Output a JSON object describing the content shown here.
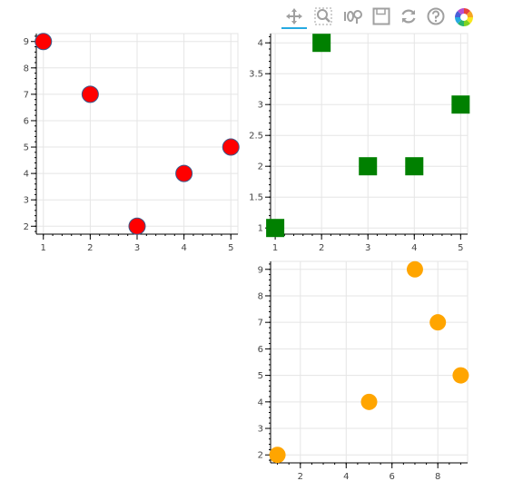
{
  "toolbar": {
    "tools": [
      {
        "name": "pan-tool",
        "icon": "pan-icon",
        "active": true
      },
      {
        "name": "box-zoom-tool",
        "icon": "box-zoom-icon",
        "active": false
      },
      {
        "name": "wheel-zoom-tool",
        "icon": "wheel-zoom-icon",
        "active": false
      },
      {
        "name": "save-tool",
        "icon": "save-icon",
        "active": false
      },
      {
        "name": "reset-tool",
        "icon": "reset-icon",
        "active": false
      },
      {
        "name": "help-tool",
        "icon": "help-icon",
        "active": false
      },
      {
        "name": "bokeh-logo",
        "icon": "bokeh-logo-icon",
        "active": false
      }
    ]
  },
  "chart_data": [
    {
      "type": "scatter",
      "marker": "circle",
      "color": "#ff0000",
      "outline": "#3a5a8c",
      "x": [
        1,
        2,
        3,
        4,
        5
      ],
      "y": [
        9,
        7,
        2,
        4,
        5
      ],
      "xlim": [
        0.85,
        5.15
      ],
      "ylim": [
        1.7,
        9.3
      ],
      "xticks": [
        1,
        2,
        3,
        4,
        5
      ],
      "yticks": [
        2,
        3,
        4,
        5,
        6,
        7,
        8,
        9
      ],
      "xtick_labels": [
        "1",
        "2",
        "3",
        "4",
        "5"
      ],
      "ytick_labels": [
        "2",
        "3",
        "4",
        "5",
        "6",
        "7",
        "8",
        "9"
      ],
      "grid": true
    },
    {
      "type": "scatter",
      "marker": "square",
      "color": "#008000",
      "x": [
        1,
        2,
        3,
        4,
        5
      ],
      "y": [
        1,
        4,
        2,
        2,
        3
      ],
      "xlim": [
        0.9,
        5.15
      ],
      "ylim": [
        0.9,
        4.15
      ],
      "xticks": [
        1,
        2,
        3,
        4,
        5
      ],
      "yticks": [
        1,
        1.5,
        2,
        2.5,
        3,
        3.5,
        4
      ],
      "xtick_labels": [
        "1",
        "2",
        "3",
        "4",
        "5"
      ],
      "ytick_labels": [
        "1",
        "1.5",
        "2",
        "2.5",
        "3",
        "3.5",
        "4"
      ],
      "grid": true
    },
    {
      "type": "scatter",
      "marker": "circle",
      "color": "#ffa500",
      "x": [
        1,
        5,
        7,
        8,
        9
      ],
      "y": [
        2,
        4,
        9,
        7,
        5
      ],
      "xlim": [
        0.7,
        9.3
      ],
      "ylim": [
        1.7,
        9.3
      ],
      "xticks": [
        2,
        4,
        6,
        8
      ],
      "yticks": [
        2,
        3,
        4,
        5,
        6,
        7,
        8,
        9
      ],
      "xtick_labels": [
        "2",
        "4",
        "6",
        "8"
      ],
      "ytick_labels": [
        "2",
        "3",
        "4",
        "5",
        "6",
        "7",
        "8",
        "9"
      ],
      "grid": true
    }
  ]
}
